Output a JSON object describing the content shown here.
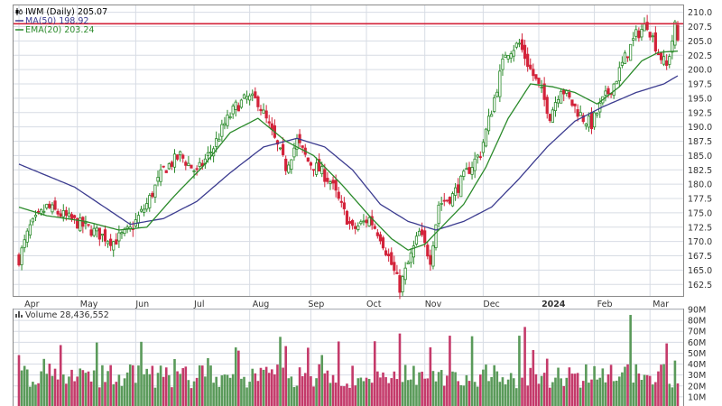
{
  "chart_data": [
    {
      "type": "candlestick",
      "legend": [
        {
          "label": "IWM (Daily) 205.07",
          "color": "#000000",
          "icon": "candlestick-icon"
        },
        {
          "label": "MA(50) 198.92",
          "color": "#3b3b8f"
        },
        {
          "label": "EMA(20) 203.24",
          "color": "#2a8a2a"
        }
      ],
      "ylim": [
        160.5,
        211.2
      ],
      "y_ticks": [
        "210.0",
        "207.5",
        "205.0",
        "202.5",
        "200.0",
        "197.5",
        "195.0",
        "192.5",
        "190.0",
        "187.5",
        "185.0",
        "182.5",
        "180.0",
        "177.5",
        "175.0",
        "172.5",
        "170.0",
        "167.5",
        "165.0",
        "162.5"
      ],
      "x_labels": [
        "Apr",
        "May",
        "Jun",
        "Jul",
        "Aug",
        "Sep",
        "Oct",
        "Nov",
        "Dec",
        "2024",
        "Feb",
        "Mar"
      ],
      "resistance_level": 208.0,
      "price_path": [
        {
          "d": 0,
          "p": 167.0
        },
        {
          "d": 4,
          "p": 172.5
        },
        {
          "d": 10,
          "p": 176.0
        },
        {
          "d": 16,
          "p": 174.5
        },
        {
          "d": 22,
          "p": 173.0
        },
        {
          "d": 28,
          "p": 171.5
        },
        {
          "d": 34,
          "p": 170.0
        },
        {
          "d": 40,
          "p": 172.0
        },
        {
          "d": 46,
          "p": 176.5
        },
        {
          "d": 52,
          "p": 182.5
        },
        {
          "d": 58,
          "p": 185.0
        },
        {
          "d": 64,
          "p": 182.0
        },
        {
          "d": 70,
          "p": 186.5
        },
        {
          "d": 74,
          "p": 190.5
        },
        {
          "d": 78,
          "p": 193.5
        },
        {
          "d": 82,
          "p": 195.0
        },
        {
          "d": 86,
          "p": 194.5
        },
        {
          "d": 90,
          "p": 190.0
        },
        {
          "d": 96,
          "p": 183.0
        },
        {
          "d": 100,
          "p": 187.5
        },
        {
          "d": 104,
          "p": 184.0
        },
        {
          "d": 108,
          "p": 182.5
        },
        {
          "d": 112,
          "p": 180.5
        },
        {
          "d": 116,
          "p": 176.0
        },
        {
          "d": 120,
          "p": 172.0
        },
        {
          "d": 126,
          "p": 174.0
        },
        {
          "d": 130,
          "p": 171.0
        },
        {
          "d": 134,
          "p": 166.0
        },
        {
          "d": 137,
          "p": 162.0
        },
        {
          "d": 141,
          "p": 167.5
        },
        {
          "d": 144,
          "p": 171.5
        },
        {
          "d": 148,
          "p": 167.0
        },
        {
          "d": 151,
          "p": 176.5
        },
        {
          "d": 156,
          "p": 178.0
        },
        {
          "d": 161,
          "p": 182.0
        },
        {
          "d": 166,
          "p": 185.5
        },
        {
          "d": 170,
          "p": 193.0
        },
        {
          "d": 175,
          "p": 203.0
        },
        {
          "d": 180,
          "p": 204.5
        },
        {
          "d": 184,
          "p": 200.0
        },
        {
          "d": 188,
          "p": 196.0
        },
        {
          "d": 191,
          "p": 192.0
        },
        {
          "d": 195,
          "p": 197.0
        },
        {
          "d": 199,
          "p": 194.0
        },
        {
          "d": 203,
          "p": 191.5
        },
        {
          "d": 206,
          "p": 190.5
        },
        {
          "d": 210,
          "p": 194.5
        },
        {
          "d": 214,
          "p": 197.5
        },
        {
          "d": 218,
          "p": 202.0
        },
        {
          "d": 222,
          "p": 206.0
        },
        {
          "d": 226,
          "p": 208.0
        },
        {
          "d": 230,
          "p": 203.0
        },
        {
          "d": 233,
          "p": 200.5
        },
        {
          "d": 236,
          "p": 207.5
        },
        {
          "d": 237,
          "p": 205.07
        }
      ],
      "ma50_path": [
        {
          "d": 0,
          "p": 183.5
        },
        {
          "d": 20,
          "p": 179.5
        },
        {
          "d": 40,
          "p": 173.0
        },
        {
          "d": 52,
          "p": 174.0
        },
        {
          "d": 64,
          "p": 177.0
        },
        {
          "d": 76,
          "p": 182.0
        },
        {
          "d": 88,
          "p": 186.5
        },
        {
          "d": 100,
          "p": 188.0
        },
        {
          "d": 110,
          "p": 186.5
        },
        {
          "d": 120,
          "p": 182.5
        },
        {
          "d": 130,
          "p": 176.5
        },
        {
          "d": 140,
          "p": 173.5
        },
        {
          "d": 150,
          "p": 172.0
        },
        {
          "d": 160,
          "p": 173.5
        },
        {
          "d": 170,
          "p": 176.0
        },
        {
          "d": 180,
          "p": 181.0
        },
        {
          "d": 190,
          "p": 186.5
        },
        {
          "d": 200,
          "p": 191.0
        },
        {
          "d": 210,
          "p": 193.5
        },
        {
          "d": 222,
          "p": 196.0
        },
        {
          "d": 232,
          "p": 197.5
        },
        {
          "d": 237,
          "p": 198.92
        }
      ],
      "ema20_path": [
        {
          "d": 0,
          "p": 176.0
        },
        {
          "d": 10,
          "p": 174.5
        },
        {
          "d": 24,
          "p": 173.5
        },
        {
          "d": 36,
          "p": 172.0
        },
        {
          "d": 46,
          "p": 172.5
        },
        {
          "d": 56,
          "p": 178.0
        },
        {
          "d": 66,
          "p": 183.0
        },
        {
          "d": 76,
          "p": 189.0
        },
        {
          "d": 86,
          "p": 191.5
        },
        {
          "d": 96,
          "p": 187.5
        },
        {
          "d": 106,
          "p": 185.0
        },
        {
          "d": 116,
          "p": 180.0
        },
        {
          "d": 126,
          "p": 174.5
        },
        {
          "d": 134,
          "p": 170.5
        },
        {
          "d": 140,
          "p": 168.5
        },
        {
          "d": 146,
          "p": 169.5
        },
        {
          "d": 152,
          "p": 172.5
        },
        {
          "d": 160,
          "p": 176.5
        },
        {
          "d": 168,
          "p": 183.0
        },
        {
          "d": 176,
          "p": 191.5
        },
        {
          "d": 184,
          "p": 197.5
        },
        {
          "d": 192,
          "p": 197.0
        },
        {
          "d": 200,
          "p": 196.0
        },
        {
          "d": 208,
          "p": 194.0
        },
        {
          "d": 216,
          "p": 197.0
        },
        {
          "d": 224,
          "p": 201.5
        },
        {
          "d": 230,
          "p": 203.0
        },
        {
          "d": 237,
          "p": 203.24
        }
      ],
      "colors": {
        "up": "#2a8a2a",
        "down": "#d3233a",
        "ma50": "#3b3b8f",
        "ema20": "#2a8a2a",
        "resistance": "#d3233a",
        "grid": "#d7dce4"
      }
    },
    {
      "type": "bar",
      "legend": [
        {
          "label": "Volume 28,436,552",
          "icon": "volume-icon"
        }
      ],
      "ylim": [
        0,
        90
      ],
      "y_ticks": [
        "90M",
        "80M",
        "70M",
        "60M",
        "50M",
        "40M",
        "30M",
        "20M",
        "10M"
      ],
      "up_color": "#5a9a5a",
      "down_color": "#c43a6a"
    }
  ]
}
